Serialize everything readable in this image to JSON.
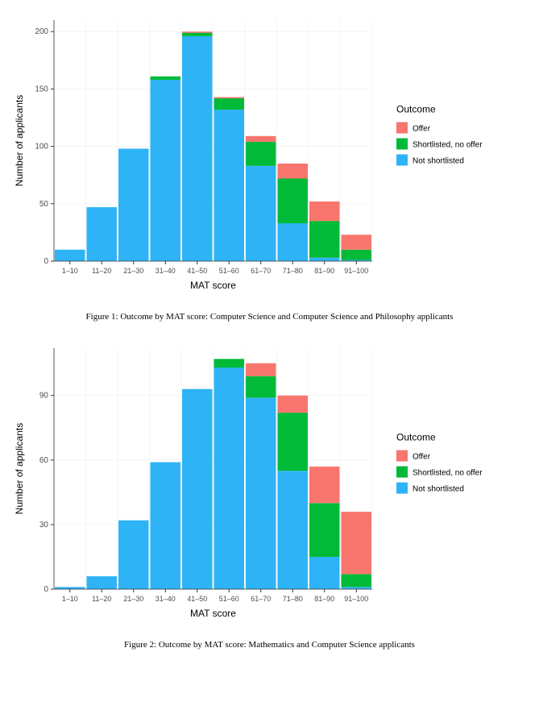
{
  "figures": [
    {
      "caption": "Figure 1: Outcome by MAT score: Computer Science and Computer Science and Philosophy applicants",
      "chart": {
        "type": "stacked-bar",
        "background_color": "#ffffff",
        "plot_background_color": "#ffffff",
        "grid_color": "#ebebeb",
        "axis_line_color": "#333333",
        "tick_color": "#333333",
        "xlabel": "MAT score",
        "ylabel": "Number of applicants",
        "label_fontsize": 12,
        "tick_fontsize": 10,
        "categories": [
          "1–10",
          "11–20",
          "21–30",
          "31–40",
          "41–50",
          "51–60",
          "61–70",
          "71–80",
          "81–90",
          "91–100"
        ],
        "ylim": [
          0,
          210
        ],
        "yticks": [
          0,
          50,
          100,
          150,
          200
        ],
        "bar_width": 0.95,
        "legend_title": "Outcome",
        "series": [
          {
            "name": "Not shortlisted",
            "color": "#2eb3f7",
            "values": [
              10,
              47,
              98,
              158,
              196,
              132,
              83,
              33,
              3,
              1
            ]
          },
          {
            "name": "Shortlisted, no offer",
            "color": "#00ba38",
            "values": [
              0,
              0,
              0,
              3,
              3,
              10,
              21,
              39,
              32,
              9
            ]
          },
          {
            "name": "Offer",
            "color": "#f8766d",
            "values": [
              0,
              0,
              0,
              0,
              1,
              1,
              5,
              13,
              17,
              13
            ]
          }
        ],
        "legend_order": [
          "Offer",
          "Shortlisted, no offer",
          "Not shortlisted"
        ]
      }
    },
    {
      "caption": "Figure 2: Outcome by MAT score: Mathematics and Computer Science applicants",
      "chart": {
        "type": "stacked-bar",
        "background_color": "#ffffff",
        "plot_background_color": "#ffffff",
        "grid_color": "#ebebeb",
        "axis_line_color": "#333333",
        "tick_color": "#333333",
        "xlabel": "MAT score",
        "ylabel": "Number of applicants",
        "label_fontsize": 12,
        "tick_fontsize": 10,
        "categories": [
          "1–10",
          "11–20",
          "21–30",
          "31–40",
          "41–50",
          "51–60",
          "61–70",
          "71–80",
          "81–90",
          "91–100"
        ],
        "ylim": [
          0,
          112
        ],
        "yticks": [
          0,
          30,
          60,
          90
        ],
        "bar_width": 0.95,
        "legend_title": "Outcome",
        "series": [
          {
            "name": "Not shortlisted",
            "color": "#2eb3f7",
            "values": [
              1,
              6,
              32,
              59,
              93,
              103,
              89,
              55,
              15,
              1
            ]
          },
          {
            "name": "Shortlisted, no offer",
            "color": "#00ba38",
            "values": [
              0,
              0,
              0,
              0,
              0,
              4,
              10,
              27,
              25,
              6
            ]
          },
          {
            "name": "Offer",
            "color": "#f8766d",
            "values": [
              0,
              0,
              0,
              0,
              0,
              0,
              6,
              8,
              17,
              29
            ]
          }
        ],
        "legend_order": [
          "Offer",
          "Shortlisted, no offer",
          "Not shortlisted"
        ]
      }
    }
  ]
}
